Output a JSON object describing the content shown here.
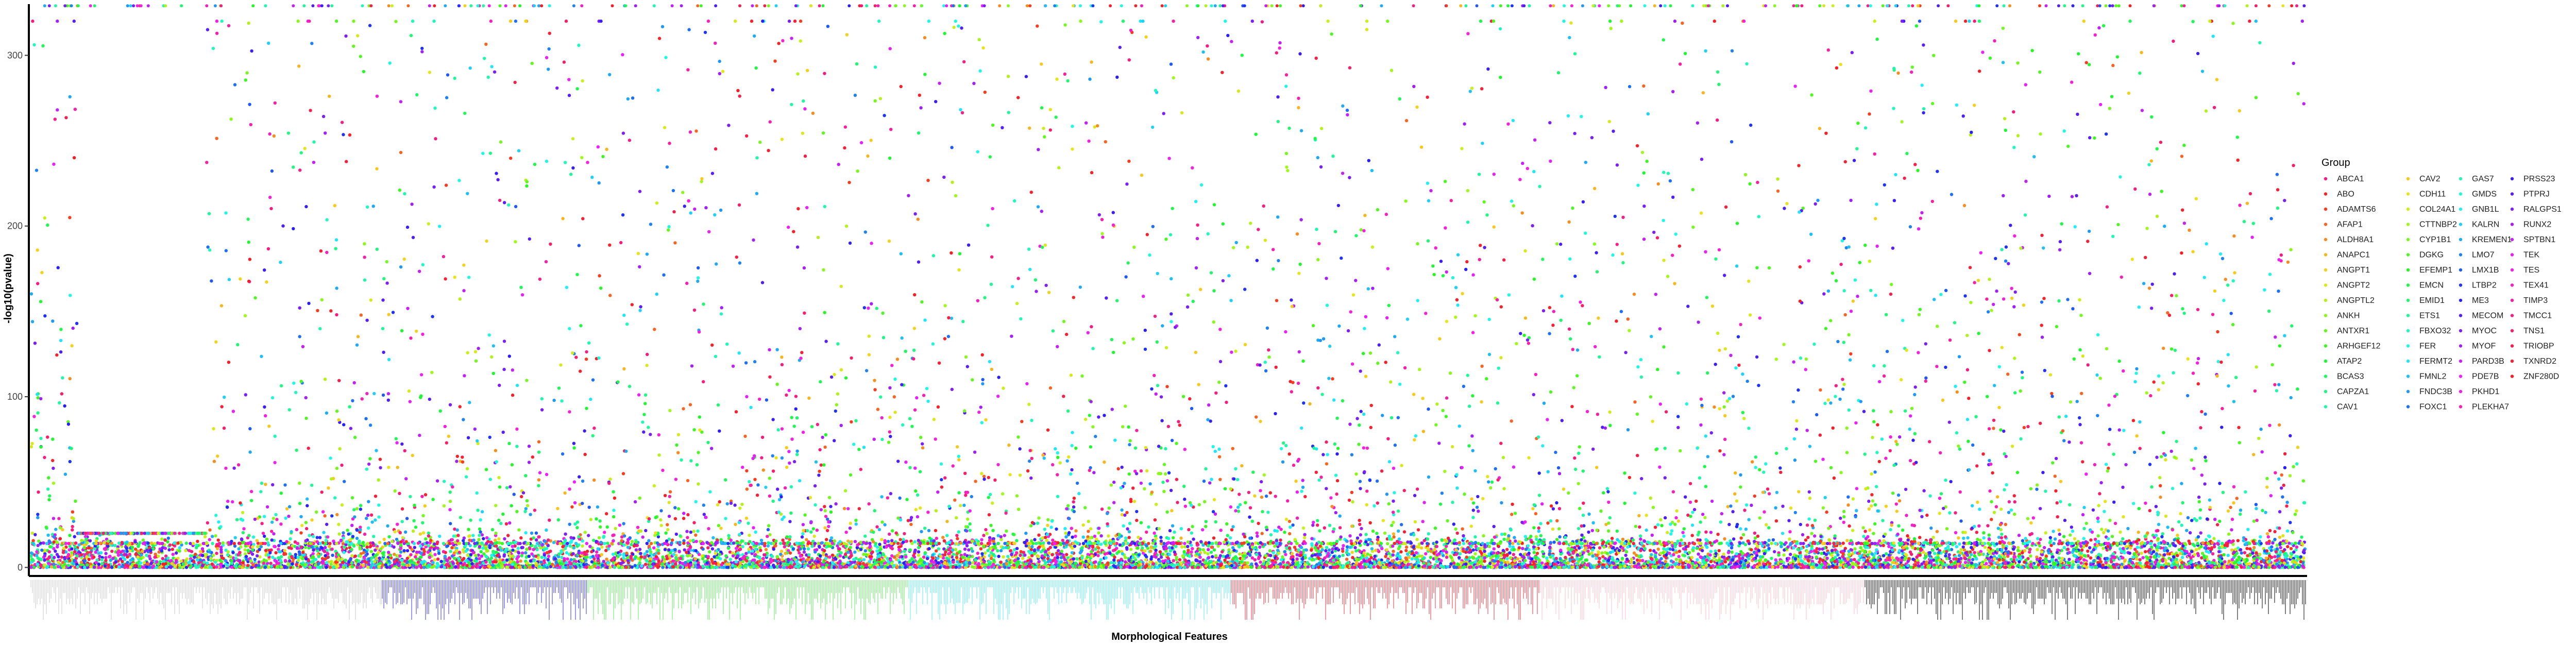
{
  "chart_data": {
    "type": "scatter",
    "title": "",
    "xlabel": "Morphological Features",
    "ylabel": "-log10(pvalue)",
    "ylim": [
      -5,
      330
    ],
    "y_ticks": [
      0,
      100,
      200,
      300
    ],
    "grid": false,
    "legend_position": "right",
    "legend_title": "Group",
    "x_group_colors": [
      "#d9d9d9",
      "#6f6ff2",
      "#8ff08f",
      "#8cf2f2",
      "#f26f7a",
      "#fbd3dc",
      "#4a4a4a"
    ],
    "series": [
      {
        "name": "ABCA1",
        "color": "#f81b7f"
      },
      {
        "name": "ABO",
        "color": "#f8222a"
      },
      {
        "name": "ADAMTS6",
        "color": "#f83c1d"
      },
      {
        "name": "AFAP1",
        "color": "#f86421"
      },
      {
        "name": "ALDH8A1",
        "color": "#f88d1f"
      },
      {
        "name": "ANAPC1",
        "color": "#f8b61e"
      },
      {
        "name": "ANGPT1",
        "color": "#f2d21c"
      },
      {
        "name": "ANGPT2",
        "color": "#d8e81b"
      },
      {
        "name": "ANGPTL2",
        "color": "#b2f21a"
      },
      {
        "name": "ANKH",
        "color": "#8af81c"
      },
      {
        "name": "ANTXR1",
        "color": "#61f81f"
      },
      {
        "name": "ARHGEF12",
        "color": "#3af821"
      },
      {
        "name": "ATAP2",
        "color": "#1ff830"
      },
      {
        "name": "BCAS3",
        "color": "#1ff858"
      },
      {
        "name": "CAPZA1",
        "color": "#1ff881"
      },
      {
        "name": "CAV1",
        "color": "#1ff8a8"
      },
      {
        "name": "CAV2",
        "color": "#f8c91c"
      },
      {
        "name": "CDH11",
        "color": "#e8e41b"
      },
      {
        "name": "COL24A1",
        "color": "#c8f01a"
      },
      {
        "name": "CTTNBP2",
        "color": "#a0f81c"
      },
      {
        "name": "CYP1B1",
        "color": "#76f81e"
      },
      {
        "name": "DGKG",
        "color": "#4ef820"
      },
      {
        "name": "EFEMP1",
        "color": "#26f822"
      },
      {
        "name": "EMCN",
        "color": "#1ff846"
      },
      {
        "name": "EMID1",
        "color": "#1ff86e"
      },
      {
        "name": "ETS1",
        "color": "#1ff896"
      },
      {
        "name": "FBXO32",
        "color": "#1ff8be"
      },
      {
        "name": "FER",
        "color": "#1ff8e4"
      },
      {
        "name": "FERMT2",
        "color": "#1fe6f8"
      },
      {
        "name": "FMNL2",
        "color": "#1fc0f8"
      },
      {
        "name": "FNDC3B",
        "color": "#1f98f8"
      },
      {
        "name": "FOXC1",
        "color": "#1f70f8"
      },
      {
        "name": "GAS7",
        "color": "#1ff8b8"
      },
      {
        "name": "GMDS",
        "color": "#1ff8dc"
      },
      {
        "name": "GNB1L",
        "color": "#1ff0f8"
      },
      {
        "name": "KALRN",
        "color": "#1fd0f8"
      },
      {
        "name": "KREMEN1",
        "color": "#1faaf8"
      },
      {
        "name": "LMO7",
        "color": "#1f82f8"
      },
      {
        "name": "LMX1B",
        "color": "#1f5af8"
      },
      {
        "name": "LTBP2",
        "color": "#1f34f8"
      },
      {
        "name": "ME3",
        "color": "#2a1ff8"
      },
      {
        "name": "MECOM",
        "color": "#4e1ff8"
      },
      {
        "name": "MYOC",
        "color": "#7a1ff8"
      },
      {
        "name": "MYOF",
        "color": "#a01ff8"
      },
      {
        "name": "PARD3B",
        "color": "#c81ff8"
      },
      {
        "name": "PDE7B",
        "color": "#ee1ff8"
      },
      {
        "name": "PKHD1",
        "color": "#f81fd8"
      },
      {
        "name": "PLEKHA7",
        "color": "#f81fb0"
      },
      {
        "name": "PRSS23",
        "color": "#3a1ff8"
      },
      {
        "name": "PTPRJ",
        "color": "#5a1ff8"
      },
      {
        "name": "RALGPS1",
        "color": "#7e1ff8"
      },
      {
        "name": "RUNX2",
        "color": "#a41ff8"
      },
      {
        "name": "SPTBN1",
        "color": "#c61ff8"
      },
      {
        "name": "TEK",
        "color": "#e81ff8"
      },
      {
        "name": "TES",
        "color": "#f81fe0"
      },
      {
        "name": "TEX41",
        "color": "#f81fc0"
      },
      {
        "name": "TIMP3",
        "color": "#f81fa0"
      },
      {
        "name": "TMCC1",
        "color": "#f81f84"
      },
      {
        "name": "TNS1",
        "color": "#f81f66"
      },
      {
        "name": "TRIOBP",
        "color": "#f81f4a"
      },
      {
        "name": "TXNRD2",
        "color": "#f81f36"
      },
      {
        "name": "ZNF280D",
        "color": "#f81f24"
      }
    ]
  }
}
